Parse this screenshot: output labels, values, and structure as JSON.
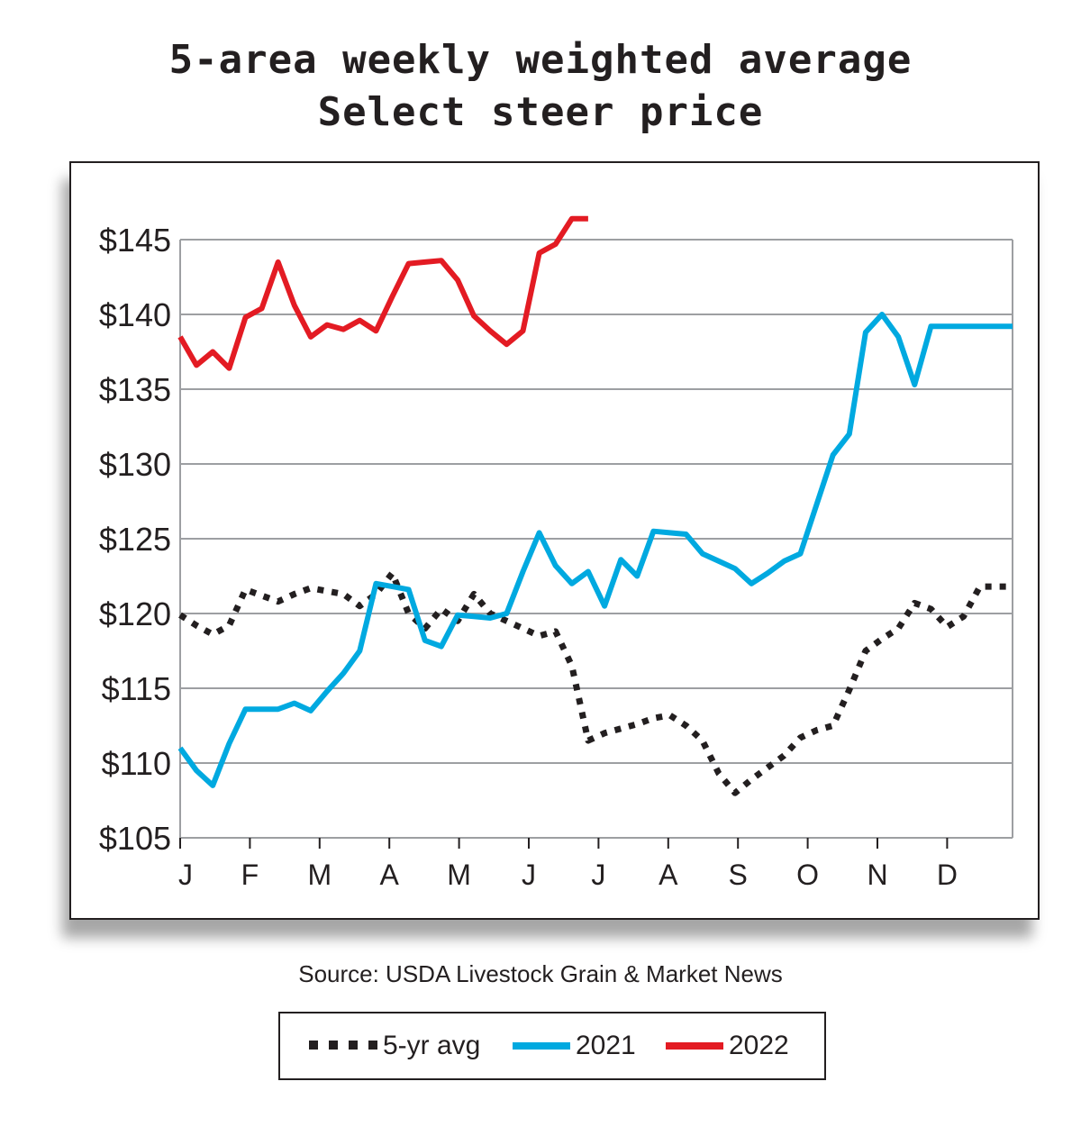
{
  "title_lines": [
    "5-area weekly weighted average",
    "Select steer price"
  ],
  "source": "Source: USDA Livestock Grain & Market News",
  "colors": {
    "avg": "#231f20",
    "y2021": "#00a9e0",
    "y2022": "#e31b23",
    "grid": "#9d9fa2",
    "text": "#231f20"
  },
  "legend": {
    "avg": "5-yr avg",
    "y2021": "2021",
    "y2022": "2022"
  },
  "chart_data": {
    "type": "line",
    "title": "5-area weekly weighted average Select steer price",
    "xlabel": "",
    "ylabel": "",
    "x_ticks": [
      "J",
      "F",
      "M",
      "A",
      "M",
      "J",
      "J",
      "A",
      "S",
      "O",
      "N",
      "D"
    ],
    "x_unit": "week of year (1–52)",
    "y_ticks": [
      "$105",
      "$110",
      "$115",
      "$120",
      "$125",
      "$130",
      "$135",
      "$140",
      "$145"
    ],
    "y_tick_values": [
      105,
      110,
      115,
      120,
      125,
      130,
      135,
      140,
      145
    ],
    "ylim": [
      105,
      145
    ],
    "xlim": [
      1,
      52
    ],
    "grid": "horizontal",
    "legend_position": "bottom",
    "series": [
      {
        "name": "5-yr avg",
        "style": "dotted",
        "color_key": "avg",
        "x": [
          1,
          2,
          3,
          4,
          5,
          6,
          7,
          8,
          9,
          10,
          11,
          12,
          13,
          14,
          15,
          16,
          17,
          18,
          19,
          20,
          21,
          22,
          23,
          24,
          25,
          26,
          27,
          28,
          29,
          30,
          31,
          32,
          33,
          34,
          35,
          36,
          37,
          38,
          39,
          40,
          41,
          42,
          43,
          44,
          45,
          46,
          47,
          48,
          49,
          50,
          51,
          52
        ],
        "values": [
          119.9,
          119.2,
          118.6,
          119.2,
          121.6,
          121.2,
          120.8,
          121.3,
          121.7,
          121.5,
          121.3,
          120.5,
          121.3,
          122.7,
          120.0,
          119.0,
          120.3,
          119.5,
          121.3,
          120.0,
          119.5,
          119.0,
          118.5,
          118.8,
          116.5,
          111.5,
          112.0,
          112.3,
          112.6,
          113.0,
          113.2,
          112.5,
          111.5,
          109.3,
          108.0,
          108.9,
          109.7,
          110.5,
          111.7,
          112.2,
          112.5,
          114.9,
          117.5,
          118.3,
          119.0,
          120.7,
          120.3,
          119.1,
          119.8,
          121.8,
          121.8,
          121.8
        ]
      },
      {
        "name": "2021",
        "style": "solid",
        "color_key": "y2021",
        "x": [
          1,
          2,
          3,
          4,
          5,
          6,
          7,
          8,
          9,
          10,
          11,
          12,
          13,
          14,
          15,
          16,
          17,
          18,
          19,
          20,
          21,
          22,
          23,
          24,
          25,
          26,
          27,
          28,
          29,
          30,
          31,
          32,
          33,
          34,
          35,
          36,
          37,
          38,
          39,
          40,
          41,
          42,
          43,
          44,
          45,
          46,
          47,
          48,
          49,
          50,
          51,
          52
        ],
        "values": [
          111.0,
          109.5,
          108.5,
          111.3,
          113.6,
          113.6,
          113.6,
          114.0,
          113.5,
          114.8,
          116.0,
          117.5,
          122.0,
          121.8,
          121.6,
          118.2,
          117.8,
          119.9,
          119.8,
          119.7,
          120.0,
          122.8,
          125.4,
          123.2,
          122.0,
          122.8,
          120.5,
          123.6,
          122.5,
          125.5,
          125.4,
          125.3,
          124.0,
          123.5,
          123.0,
          122.0,
          122.7,
          123.5,
          124.0,
          127.3,
          130.6,
          132.0,
          138.8,
          140.0,
          138.5,
          135.3,
          139.2,
          139.2,
          139.2,
          139.2,
          139.2,
          139.2
        ]
      },
      {
        "name": "2022",
        "style": "solid",
        "color_key": "y2022",
        "x": [
          1,
          2,
          3,
          4,
          5,
          6,
          7,
          8,
          9,
          10,
          11,
          12,
          13,
          14,
          15,
          16,
          17,
          18,
          19,
          20,
          21,
          22,
          23,
          24,
          25,
          26
        ],
        "values": [
          138.5,
          136.6,
          137.5,
          136.4,
          139.8,
          140.4,
          143.5,
          140.6,
          138.5,
          139.3,
          139.0,
          139.6,
          138.9,
          141.2,
          143.4,
          143.5,
          143.6,
          142.3,
          139.9,
          138.9,
          138.0,
          138.9,
          144.1,
          144.7,
          146.4,
          146.4
        ]
      }
    ]
  }
}
